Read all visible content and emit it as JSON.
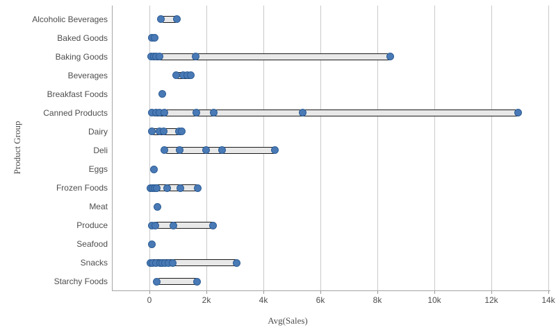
{
  "chart_data": {
    "type": "scatter",
    "subtype": "distribution-plot",
    "orientation": "horizontal",
    "title": "",
    "xlabel": "Avg(Sales)",
    "ylabel": "Product Group",
    "xlim": [
      0,
      14000
    ],
    "x_tick_labels": [
      "0",
      "2k",
      "4k",
      "6k",
      "8k",
      "10k",
      "12k",
      "14k"
    ],
    "x_tick_values": [
      0,
      2000,
      4000,
      6000,
      8000,
      10000,
      12000,
      14000
    ],
    "grid": "vertical-gridlines-on",
    "legend": "none",
    "categories": [
      "Alcoholic Beverages",
      "Baked Goods",
      "Baking Goods",
      "Beverages",
      "Breakfast Foods",
      "Canned Products",
      "Dairy",
      "Deli",
      "Eggs",
      "Frozen Foods",
      "Meat",
      "Produce",
      "Seafood",
      "Snacks",
      "Starchy Foods"
    ],
    "rows": [
      {
        "category": "Alcoholic Beverages",
        "points": [
          410,
          960
        ],
        "range": [
          410,
          960
        ]
      },
      {
        "category": "Baked Goods",
        "points": [
          90,
          180
        ],
        "range": [
          90,
          180
        ]
      },
      {
        "category": "Baking Goods",
        "points": [
          60,
          150,
          240,
          350,
          1610,
          8450
        ],
        "range": [
          60,
          8450
        ]
      },
      {
        "category": "Beverages",
        "points": [
          930,
          1190,
          1330,
          1440
        ],
        "range": [
          930,
          1440
        ]
      },
      {
        "category": "Breakfast Foods",
        "points": [
          440
        ],
        "range": [
          440,
          440
        ]
      },
      {
        "category": "Canned Products",
        "points": [
          90,
          240,
          360,
          520,
          1640,
          2260,
          5390,
          12950
        ],
        "range": [
          90,
          12950
        ]
      },
      {
        "category": "Dairy",
        "points": [
          80,
          350,
          500,
          1030,
          1140
        ],
        "range": [
          80,
          1140
        ]
      },
      {
        "category": "Deli",
        "points": [
          530,
          1060,
          1980,
          2550,
          4400
        ],
        "range": [
          530,
          4400
        ]
      },
      {
        "category": "Eggs",
        "points": [
          160
        ],
        "range": [
          160,
          160
        ]
      },
      {
        "category": "Frozen Foods",
        "points": [
          30,
          120,
          180,
          260,
          620,
          1080,
          1690
        ],
        "range": [
          30,
          1690
        ]
      },
      {
        "category": "Meat",
        "points": [
          280
        ],
        "range": [
          280,
          280
        ]
      },
      {
        "category": "Produce",
        "points": [
          90,
          200,
          830,
          2230
        ],
        "range": [
          90,
          2230
        ]
      },
      {
        "category": "Seafood",
        "points": [
          75
        ],
        "range": [
          75,
          75
        ]
      },
      {
        "category": "Snacks",
        "points": [
          30,
          120,
          240,
          370,
          450,
          560,
          680,
          820,
          3060
        ],
        "range": [
          30,
          3060
        ]
      },
      {
        "category": "Starchy Foods",
        "points": [
          260,
          1670
        ],
        "range": [
          260,
          1670
        ]
      }
    ],
    "colors": {
      "point_fill": "#4a7ab5",
      "point_stroke": "#2c5d96",
      "range_fill": "#e8e8e8",
      "range_stroke": "#1a1a1a",
      "gridline": "#c9c9c9",
      "axis_line": "#a3a3a3",
      "text": "#4d4d4d"
    }
  }
}
